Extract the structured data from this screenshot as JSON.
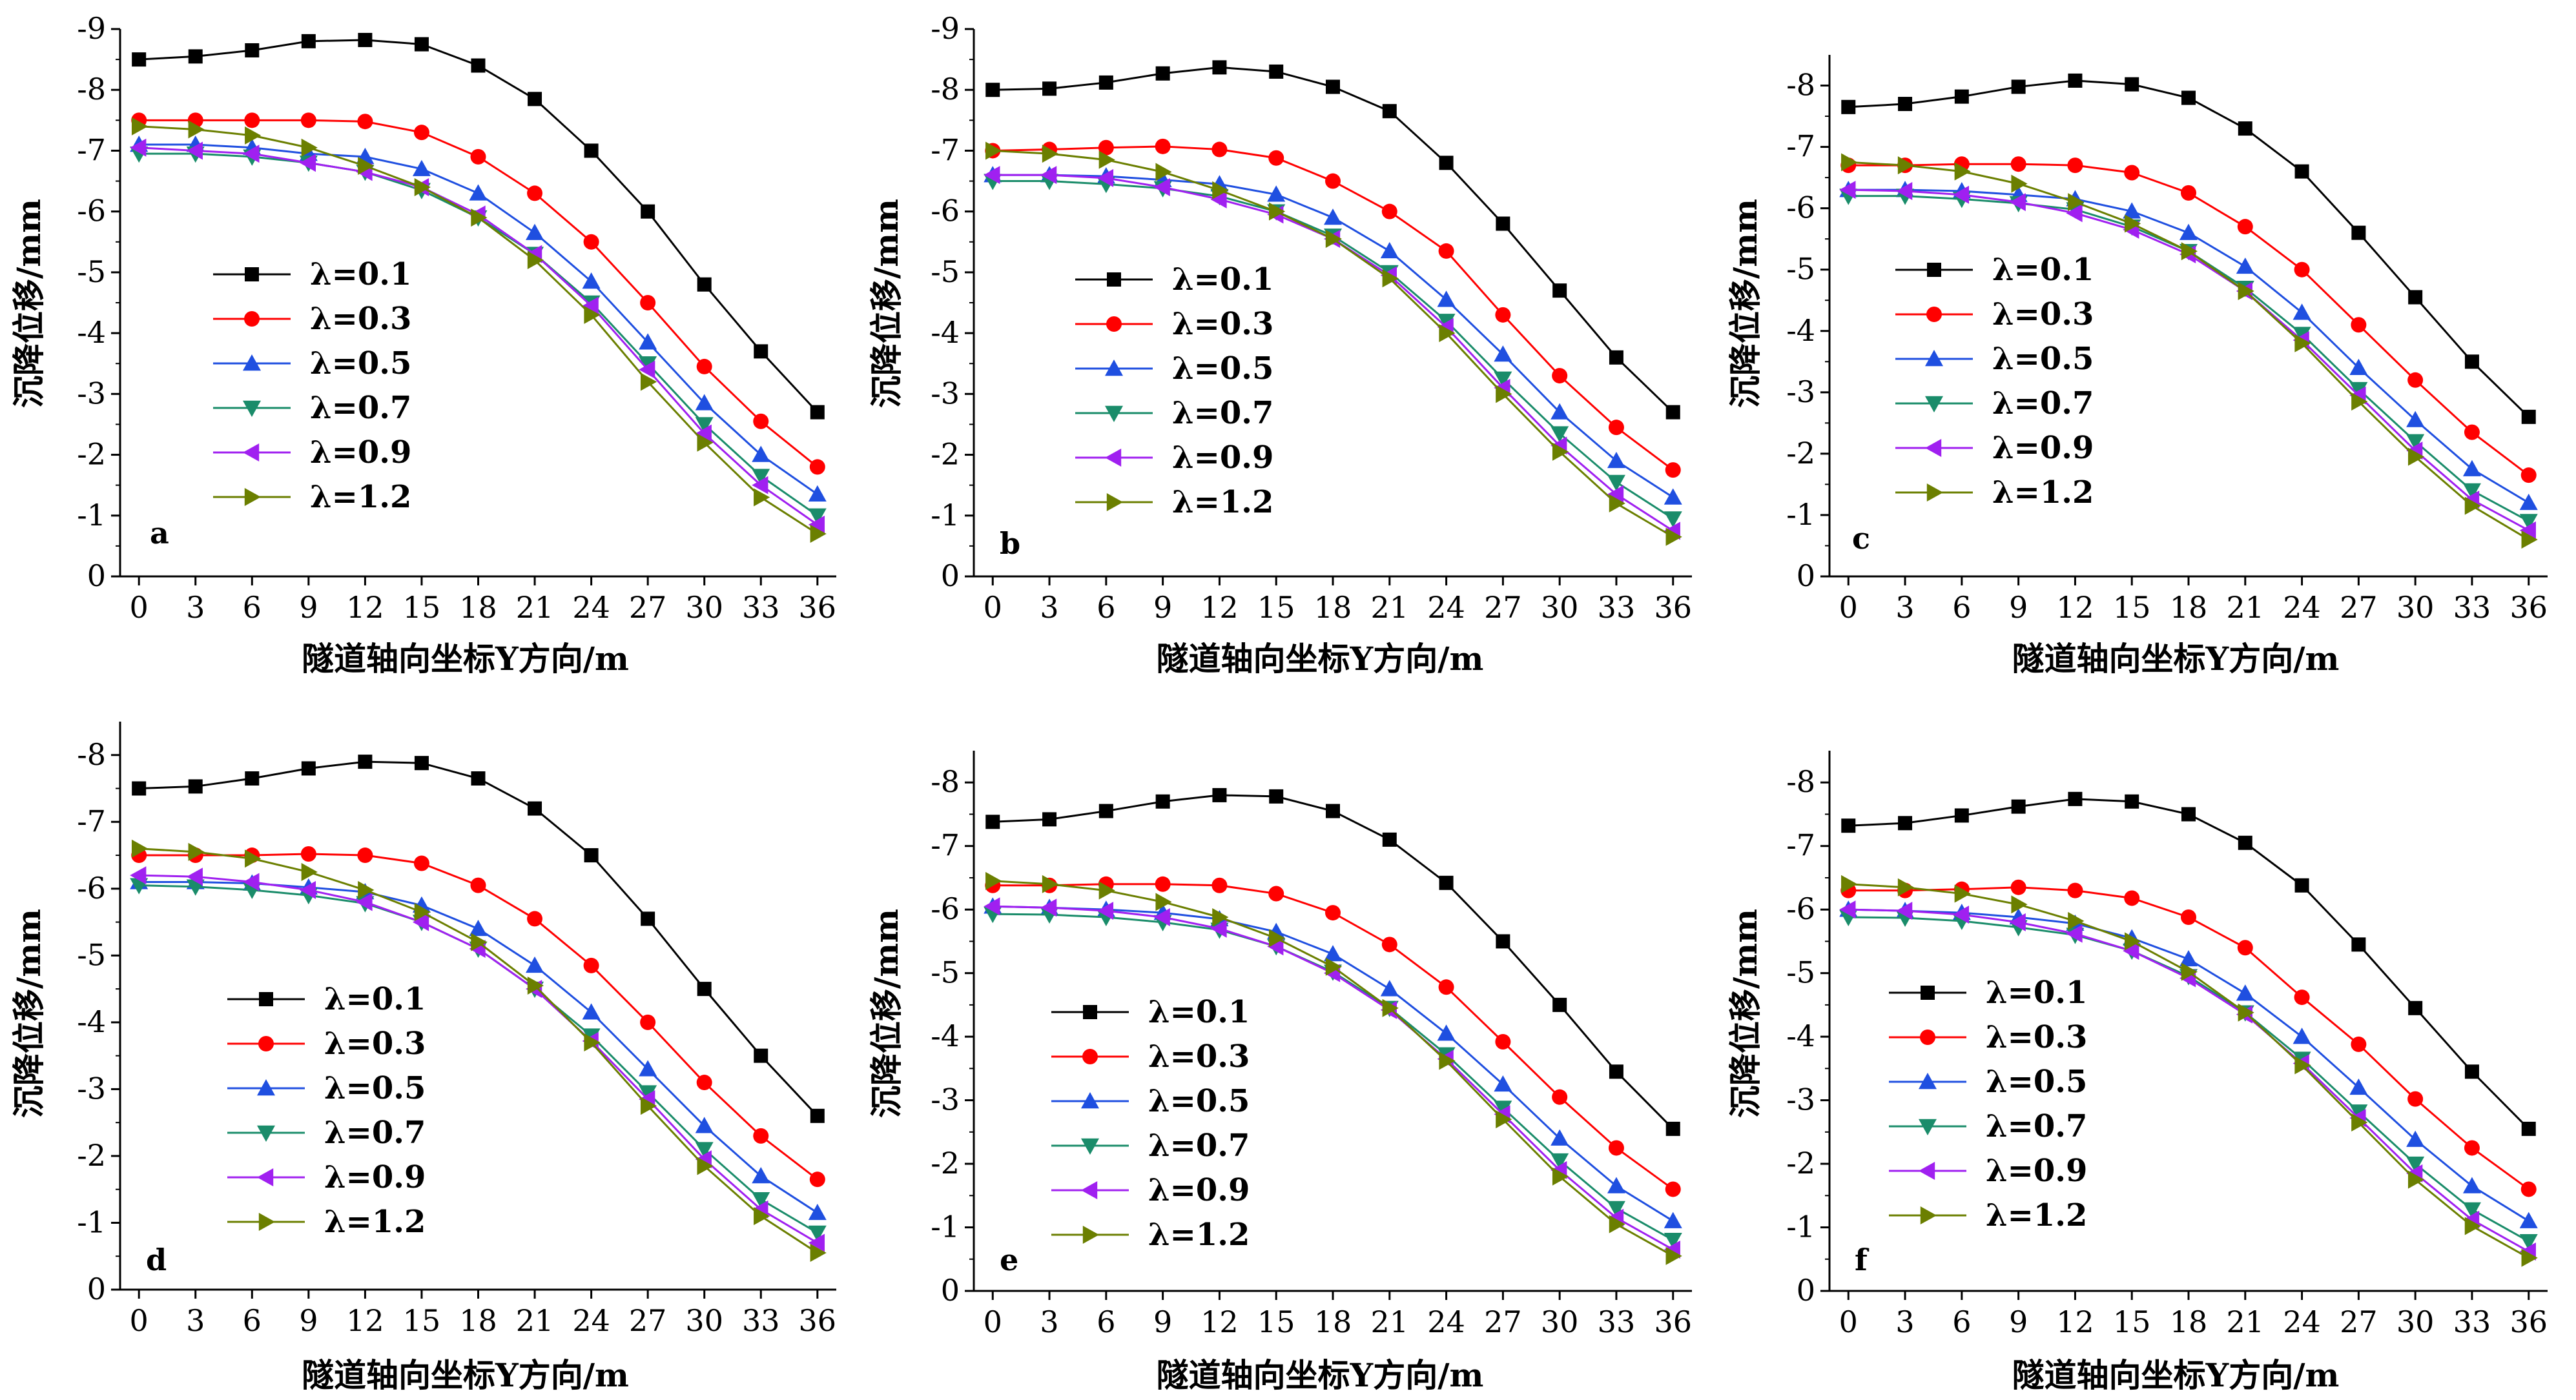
{
  "figure": {
    "xlabel": "隧道轴向坐标Y方向/m",
    "ylabel": "沉降位移/mm"
  },
  "legend": {
    "entries": [
      "λ=0.1",
      "λ=0.3",
      "λ=0.5",
      "λ=0.7",
      "λ=0.9",
      "λ=1.2"
    ]
  },
  "series_styles": [
    {
      "name": "λ=0.1",
      "color": "#000000",
      "marker": "square"
    },
    {
      "name": "λ=0.3",
      "color": "#ff0000",
      "marker": "circle"
    },
    {
      "name": "λ=0.5",
      "color": "#1f4fe0",
      "marker": "triangle-up"
    },
    {
      "name": "λ=0.7",
      "color": "#1a8c6a",
      "marker": "triangle-down"
    },
    {
      "name": "λ=0.9",
      "color": "#a020f0",
      "marker": "triangle-left"
    },
    {
      "name": "λ=1.2",
      "color": "#6b7f00",
      "marker": "triangle-right"
    }
  ],
  "chart_data": [
    {
      "panel": "a",
      "type": "line",
      "xlabel": "隧道轴向坐标Y方向/m",
      "ylabel": "沉降位移/mm",
      "x": [
        0,
        3,
        6,
        9,
        12,
        15,
        18,
        21,
        24,
        27,
        30,
        33,
        36
      ],
      "xlim": [
        -1,
        37
      ],
      "ylim": [
        0,
        -9
      ],
      "yticks": [
        0,
        -1,
        -2,
        -3,
        -4,
        -5,
        -6,
        -7,
        -8,
        -9
      ],
      "series": [
        {
          "name": "λ=0.1",
          "values": [
            -8.5,
            -8.55,
            -8.65,
            -8.8,
            -8.82,
            -8.75,
            -8.4,
            -7.85,
            -7.0,
            -6.0,
            -4.8,
            -3.7,
            -2.7
          ]
        },
        {
          "name": "λ=0.3",
          "values": [
            -7.5,
            -7.5,
            -7.5,
            -7.5,
            -7.48,
            -7.3,
            -6.9,
            -6.3,
            -5.5,
            -4.5,
            -3.45,
            -2.55,
            -1.8
          ]
        },
        {
          "name": "λ=0.5",
          "values": [
            -7.1,
            -7.1,
            -7.05,
            -6.95,
            -6.9,
            -6.7,
            -6.3,
            -5.65,
            -4.85,
            -3.85,
            -2.85,
            -2.0,
            -1.35
          ]
        },
        {
          "name": "λ=0.7",
          "values": [
            -6.95,
            -6.95,
            -6.9,
            -6.8,
            -6.65,
            -6.35,
            -5.9,
            -5.3,
            -4.5,
            -3.5,
            -2.5,
            -1.65,
            -1.0
          ]
        },
        {
          "name": "λ=0.9",
          "values": [
            -7.05,
            -7.0,
            -6.95,
            -6.8,
            -6.65,
            -6.4,
            -5.95,
            -5.3,
            -4.45,
            -3.4,
            -2.35,
            -1.5,
            -0.85
          ]
        },
        {
          "name": "λ=1.2",
          "values": [
            -7.4,
            -7.35,
            -7.25,
            -7.05,
            -6.75,
            -6.4,
            -5.9,
            -5.2,
            -4.3,
            -3.2,
            -2.2,
            -1.3,
            -0.7
          ]
        }
      ]
    },
    {
      "panel": "b",
      "type": "line",
      "xlabel": "隧道轴向坐标Y方向/m",
      "ylabel": "沉降位移/mm",
      "x": [
        0,
        3,
        6,
        9,
        12,
        15,
        18,
        21,
        24,
        27,
        30,
        33,
        36
      ],
      "xlim": [
        -1,
        37
      ],
      "ylim": [
        0,
        -9
      ],
      "yticks": [
        0,
        -1,
        -2,
        -3,
        -4,
        -5,
        -6,
        -7,
        -8,
        -9
      ],
      "series": [
        {
          "name": "λ=0.1",
          "values": [
            -8.0,
            -8.02,
            -8.12,
            -8.27,
            -8.37,
            -8.3,
            -8.05,
            -7.65,
            -6.8,
            -5.8,
            -4.7,
            -3.6,
            -2.7
          ]
        },
        {
          "name": "λ=0.3",
          "values": [
            -7.0,
            -7.02,
            -7.05,
            -7.07,
            -7.02,
            -6.88,
            -6.5,
            -6.0,
            -5.35,
            -4.3,
            -3.3,
            -2.45,
            -1.75
          ]
        },
        {
          "name": "λ=0.5",
          "values": [
            -6.6,
            -6.6,
            -6.58,
            -6.52,
            -6.45,
            -6.28,
            -5.9,
            -5.35,
            -4.55,
            -3.65,
            -2.7,
            -1.9,
            -1.3
          ]
        },
        {
          "name": "λ=0.7",
          "values": [
            -6.5,
            -6.5,
            -6.45,
            -6.38,
            -6.25,
            -6.0,
            -5.6,
            -5.0,
            -4.2,
            -3.25,
            -2.35,
            -1.55,
            -0.95
          ]
        },
        {
          "name": "λ=0.9",
          "values": [
            -6.6,
            -6.6,
            -6.55,
            -6.4,
            -6.2,
            -5.95,
            -5.55,
            -4.95,
            -4.1,
            -3.1,
            -2.15,
            -1.35,
            -0.75
          ]
        },
        {
          "name": "λ=1.2",
          "values": [
            -7.0,
            -6.95,
            -6.85,
            -6.65,
            -6.35,
            -6.0,
            -5.55,
            -4.9,
            -4.0,
            -3.0,
            -2.05,
            -1.2,
            -0.65
          ]
        }
      ]
    },
    {
      "panel": "c",
      "type": "line",
      "xlabel": "隧道轴向坐标Y方向/m",
      "ylabel": "沉降位移/mm",
      "x": [
        0,
        3,
        6,
        9,
        12,
        15,
        18,
        21,
        24,
        27,
        30,
        33,
        36
      ],
      "xlim": [
        -1,
        37
      ],
      "ylim": [
        0,
        -8.5
      ],
      "yticks": [
        0,
        -1,
        -2,
        -3,
        -4,
        -5,
        -6,
        -7,
        -8
      ],
      "series": [
        {
          "name": "λ=0.1",
          "values": [
            -7.65,
            -7.7,
            -7.82,
            -7.98,
            -8.08,
            -8.02,
            -7.8,
            -7.3,
            -6.6,
            -5.6,
            -4.55,
            -3.5,
            -2.6
          ]
        },
        {
          "name": "λ=0.3",
          "values": [
            -6.7,
            -6.7,
            -6.72,
            -6.72,
            -6.7,
            -6.58,
            -6.25,
            -5.7,
            -5.0,
            -4.1,
            -3.2,
            -2.35,
            -1.65
          ]
        },
        {
          "name": "λ=0.5",
          "values": [
            -6.3,
            -6.3,
            -6.28,
            -6.22,
            -6.15,
            -5.95,
            -5.6,
            -5.05,
            -4.3,
            -3.4,
            -2.55,
            -1.75,
            -1.2
          ]
        },
        {
          "name": "λ=0.7",
          "values": [
            -6.2,
            -6.2,
            -6.15,
            -6.08,
            -5.98,
            -5.7,
            -5.3,
            -4.7,
            -3.95,
            -3.05,
            -2.2,
            -1.4,
            -0.9
          ]
        },
        {
          "name": "λ=0.9",
          "values": [
            -6.3,
            -6.28,
            -6.22,
            -6.1,
            -5.92,
            -5.65,
            -5.25,
            -4.65,
            -3.85,
            -2.95,
            -2.05,
            -1.25,
            -0.75
          ]
        },
        {
          "name": "λ=1.2",
          "values": [
            -6.75,
            -6.7,
            -6.6,
            -6.4,
            -6.1,
            -5.75,
            -5.3,
            -4.65,
            -3.8,
            -2.85,
            -1.95,
            -1.15,
            -0.6
          ]
        }
      ]
    },
    {
      "panel": "d",
      "type": "line",
      "xlabel": "隧道轴向坐标Y方向/m",
      "ylabel": "沉降位移/mm",
      "x": [
        0,
        3,
        6,
        9,
        12,
        15,
        18,
        21,
        24,
        27,
        30,
        33,
        36
      ],
      "xlim": [
        -1,
        37
      ],
      "ylim": [
        0,
        -8.5
      ],
      "yticks": [
        0,
        -1,
        -2,
        -3,
        -4,
        -5,
        -6,
        -7,
        -8
      ],
      "series": [
        {
          "name": "λ=0.1",
          "values": [
            -7.5,
            -7.53,
            -7.65,
            -7.8,
            -7.9,
            -7.88,
            -7.65,
            -7.2,
            -6.5,
            -5.55,
            -4.5,
            -3.5,
            -2.6
          ]
        },
        {
          "name": "λ=0.3",
          "values": [
            -6.5,
            -6.5,
            -6.5,
            -6.52,
            -6.5,
            -6.38,
            -6.05,
            -5.55,
            -4.85,
            -4.0,
            -3.1,
            -2.3,
            -1.65
          ]
        },
        {
          "name": "λ=0.5",
          "values": [
            -6.1,
            -6.1,
            -6.08,
            -6.02,
            -5.95,
            -5.75,
            -5.4,
            -4.85,
            -4.15,
            -3.3,
            -2.45,
            -1.7,
            -1.15
          ]
        },
        {
          "name": "λ=0.7",
          "values": [
            -6.05,
            -6.03,
            -5.98,
            -5.9,
            -5.78,
            -5.5,
            -5.1,
            -4.5,
            -3.8,
            -2.95,
            -2.1,
            -1.35,
            -0.85
          ]
        },
        {
          "name": "λ=0.9",
          "values": [
            -6.2,
            -6.18,
            -6.1,
            -5.98,
            -5.8,
            -5.5,
            -5.1,
            -4.5,
            -3.72,
            -2.85,
            -1.95,
            -1.2,
            -0.7
          ]
        },
        {
          "name": "λ=1.2",
          "values": [
            -6.6,
            -6.55,
            -6.45,
            -6.25,
            -5.98,
            -5.65,
            -5.2,
            -4.55,
            -3.7,
            -2.75,
            -1.85,
            -1.1,
            -0.55
          ]
        }
      ]
    },
    {
      "panel": "e",
      "type": "line",
      "xlabel": "隧道轴向坐标Y方向/m",
      "ylabel": "沉降位移/mm",
      "x": [
        0,
        3,
        6,
        9,
        12,
        15,
        18,
        21,
        24,
        27,
        30,
        33,
        36
      ],
      "xlim": [
        -1,
        37
      ],
      "ylim": [
        0,
        -8.5
      ],
      "yticks": [
        0,
        -1,
        -2,
        -3,
        -4,
        -5,
        -6,
        -7,
        -8
      ],
      "series": [
        {
          "name": "λ=0.1",
          "values": [
            -7.38,
            -7.42,
            -7.55,
            -7.7,
            -7.8,
            -7.78,
            -7.55,
            -7.1,
            -6.42,
            -5.5,
            -4.5,
            -3.45,
            -2.55
          ]
        },
        {
          "name": "λ=0.3",
          "values": [
            -6.38,
            -6.38,
            -6.4,
            -6.4,
            -6.38,
            -6.25,
            -5.95,
            -5.45,
            -4.78,
            -3.92,
            -3.05,
            -2.25,
            -1.6
          ]
        },
        {
          "name": "λ=0.5",
          "values": [
            -6.05,
            -6.03,
            -6.0,
            -5.95,
            -5.85,
            -5.65,
            -5.3,
            -4.75,
            -4.05,
            -3.25,
            -2.4,
            -1.65,
            -1.1
          ]
        },
        {
          "name": "λ=0.7",
          "values": [
            -5.93,
            -5.92,
            -5.88,
            -5.8,
            -5.68,
            -5.42,
            -5.02,
            -4.45,
            -3.72,
            -2.88,
            -2.05,
            -1.3,
            -0.8
          ]
        },
        {
          "name": "λ=0.9",
          "values": [
            -6.05,
            -6.03,
            -5.98,
            -5.88,
            -5.7,
            -5.42,
            -5.0,
            -4.42,
            -3.65,
            -2.78,
            -1.9,
            -1.15,
            -0.65
          ]
        },
        {
          "name": "λ=1.2",
          "values": [
            -6.45,
            -6.4,
            -6.3,
            -6.12,
            -5.88,
            -5.55,
            -5.1,
            -4.45,
            -3.62,
            -2.7,
            -1.8,
            -1.05,
            -0.55
          ]
        }
      ]
    },
    {
      "panel": "f",
      "type": "line",
      "xlabel": "隧道轴向坐标Y方向/m",
      "ylabel": "沉降位移/mm",
      "x": [
        0,
        3,
        6,
        9,
        12,
        15,
        18,
        21,
        24,
        27,
        30,
        33,
        36
      ],
      "xlim": [
        -1,
        37
      ],
      "ylim": [
        0,
        -8.5
      ],
      "yticks": [
        0,
        -1,
        -2,
        -3,
        -4,
        -5,
        -6,
        -7,
        -8
      ],
      "series": [
        {
          "name": "λ=0.1",
          "values": [
            -7.32,
            -7.36,
            -7.48,
            -7.62,
            -7.74,
            -7.7,
            -7.5,
            -7.05,
            -6.38,
            -5.45,
            -4.45,
            -3.45,
            -2.55
          ]
        },
        {
          "name": "λ=0.3",
          "values": [
            -6.3,
            -6.3,
            -6.32,
            -6.35,
            -6.3,
            -6.18,
            -5.88,
            -5.4,
            -4.62,
            -3.88,
            -3.02,
            -2.25,
            -1.6
          ]
        },
        {
          "name": "λ=0.5",
          "values": [
            -6.0,
            -5.98,
            -5.95,
            -5.88,
            -5.78,
            -5.55,
            -5.22,
            -4.68,
            -4.0,
            -3.2,
            -2.38,
            -1.65,
            -1.1
          ]
        },
        {
          "name": "λ=0.7",
          "values": [
            -5.88,
            -5.87,
            -5.82,
            -5.72,
            -5.6,
            -5.35,
            -4.95,
            -4.38,
            -3.65,
            -2.82,
            -2.0,
            -1.28,
            -0.78
          ]
        },
        {
          "name": "λ=0.9",
          "values": [
            -6.0,
            -5.98,
            -5.92,
            -5.8,
            -5.62,
            -5.35,
            -4.92,
            -4.35,
            -3.58,
            -2.72,
            -1.85,
            -1.12,
            -0.62
          ]
        },
        {
          "name": "λ=1.2",
          "values": [
            -6.4,
            -6.35,
            -6.25,
            -6.08,
            -5.82,
            -5.5,
            -5.02,
            -4.38,
            -3.55,
            -2.65,
            -1.75,
            -1.02,
            -0.52
          ]
        }
      ]
    }
  ]
}
